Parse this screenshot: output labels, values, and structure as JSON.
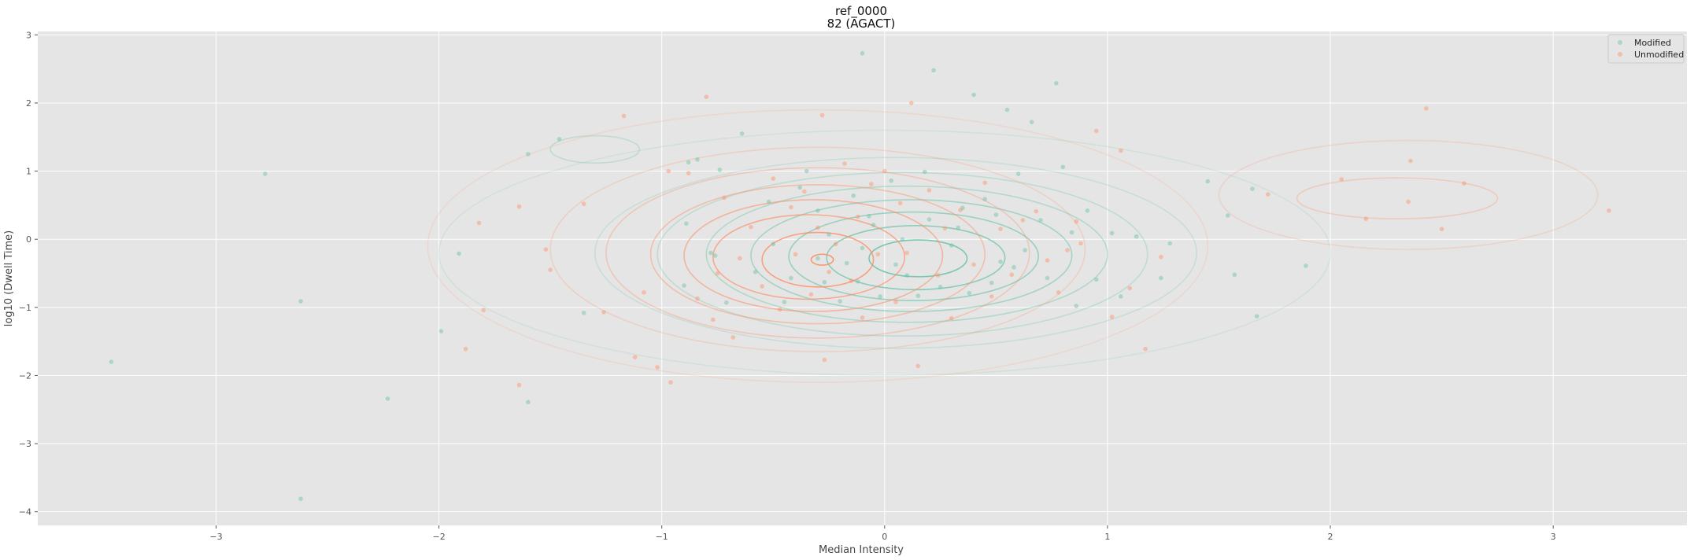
{
  "chart_data": {
    "type": "scatter",
    "title": "ref_0000",
    "subtitle": "82 (AGACT)",
    "xlabel": "Median Intensity",
    "ylabel": "log10 (Dwell Time)",
    "xlim": [
      -3.8,
      3.6
    ],
    "ylim": [
      -4.2,
      3.05
    ],
    "x_ticks": [
      -3,
      -2,
      -1,
      0,
      1,
      2,
      3
    ],
    "y_ticks": [
      -4,
      -3,
      -2,
      -1,
      0,
      1,
      2,
      3
    ],
    "grid": true,
    "legend_position": "top-right",
    "colors": {
      "background": "#e5e5e5",
      "grid": "#ffffff",
      "modified": "#66c2a5",
      "unmodified": "#fc8d62"
    },
    "series": [
      {
        "name": "Modified",
        "points": [
          [
            -3.47,
            -1.8
          ],
          [
            -2.78,
            0.96
          ],
          [
            -2.62,
            -0.91
          ],
          [
            -2.62,
            -3.81
          ],
          [
            -2.23,
            -2.34
          ],
          [
            -1.99,
            -1.35
          ],
          [
            -1.91,
            -0.21
          ],
          [
            -1.6,
            1.25
          ],
          [
            -1.6,
            -2.39
          ],
          [
            -1.46,
            1.47
          ],
          [
            -1.35,
            -1.08
          ],
          [
            -0.9,
            -0.68
          ],
          [
            -0.89,
            0.23
          ],
          [
            -0.88,
            1.13
          ],
          [
            -0.84,
            1.17
          ],
          [
            -0.78,
            -0.2
          ],
          [
            -0.76,
            -0.24
          ],
          [
            -0.74,
            1.02
          ],
          [
            -0.71,
            -0.93
          ],
          [
            -0.64,
            1.55
          ],
          [
            -0.58,
            -0.48
          ],
          [
            -0.52,
            0.55
          ],
          [
            -0.5,
            -0.07
          ],
          [
            -0.45,
            -0.92
          ],
          [
            -0.42,
            -0.57
          ],
          [
            -0.38,
            0.76
          ],
          [
            -0.35,
            1.0
          ],
          [
            -0.3,
            0.42
          ],
          [
            -0.3,
            -0.28
          ],
          [
            -0.27,
            -0.63
          ],
          [
            -0.25,
            0.07
          ],
          [
            -0.2,
            -0.91
          ],
          [
            -0.17,
            -0.35
          ],
          [
            -0.14,
            0.64
          ],
          [
            -0.12,
            -0.62
          ],
          [
            -0.1,
            -0.13
          ],
          [
            -0.1,
            2.73
          ],
          [
            -0.07,
            0.34
          ],
          [
            -0.05,
            0.21
          ],
          [
            -0.02,
            -0.84
          ],
          [
            0.03,
            0.86
          ],
          [
            0.05,
            -0.37
          ],
          [
            0.08,
            0.0
          ],
          [
            0.1,
            -0.53
          ],
          [
            0.15,
            -0.83
          ],
          [
            0.18,
            0.99
          ],
          [
            0.2,
            0.29
          ],
          [
            0.22,
            2.48
          ],
          [
            0.25,
            -0.7
          ],
          [
            0.3,
            -0.09
          ],
          [
            0.33,
            0.17
          ],
          [
            0.35,
            0.46
          ],
          [
            0.38,
            -0.79
          ],
          [
            0.4,
            2.12
          ],
          [
            0.45,
            0.59
          ],
          [
            0.48,
            -0.64
          ],
          [
            0.5,
            0.36
          ],
          [
            0.52,
            -0.33
          ],
          [
            0.55,
            1.9
          ],
          [
            0.58,
            -0.41
          ],
          [
            0.6,
            0.96
          ],
          [
            0.63,
            -0.16
          ],
          [
            0.66,
            1.72
          ],
          [
            0.7,
            0.28
          ],
          [
            0.73,
            -0.57
          ],
          [
            0.77,
            2.29
          ],
          [
            0.8,
            1.06
          ],
          [
            0.84,
            0.1
          ],
          [
            0.86,
            -0.98
          ],
          [
            0.91,
            0.42
          ],
          [
            0.95,
            -0.59
          ],
          [
            1.02,
            0.09
          ],
          [
            1.06,
            -0.84
          ],
          [
            1.13,
            0.04
          ],
          [
            1.24,
            -0.57
          ],
          [
            1.28,
            -0.06
          ],
          [
            1.45,
            0.85
          ],
          [
            1.54,
            0.35
          ],
          [
            1.57,
            -0.52
          ],
          [
            1.65,
            0.74
          ],
          [
            1.67,
            -1.13
          ],
          [
            1.89,
            -0.39
          ]
        ]
      },
      {
        "name": "Unmodified",
        "points": [
          [
            -1.88,
            -1.61
          ],
          [
            -1.82,
            0.24
          ],
          [
            -1.8,
            -1.04
          ],
          [
            -1.64,
            -2.14
          ],
          [
            -1.64,
            0.48
          ],
          [
            -1.52,
            -0.15
          ],
          [
            -1.5,
            -0.45
          ],
          [
            -1.35,
            0.52
          ],
          [
            -1.26,
            -1.07
          ],
          [
            -1.17,
            1.81
          ],
          [
            -1.12,
            -1.73
          ],
          [
            -1.08,
            -0.78
          ],
          [
            -1.02,
            -1.88
          ],
          [
            -0.97,
            1.0
          ],
          [
            -0.96,
            -2.1
          ],
          [
            -0.88,
            0.97
          ],
          [
            -0.84,
            -0.87
          ],
          [
            -0.8,
            2.09
          ],
          [
            -0.77,
            -1.18
          ],
          [
            -0.75,
            -0.5
          ],
          [
            -0.72,
            0.61
          ],
          [
            -0.68,
            -1.44
          ],
          [
            -0.65,
            -0.28
          ],
          [
            -0.6,
            0.18
          ],
          [
            -0.55,
            -0.69
          ],
          [
            -0.5,
            0.89
          ],
          [
            -0.47,
            -1.03
          ],
          [
            -0.42,
            0.47
          ],
          [
            -0.4,
            -0.22
          ],
          [
            -0.36,
            0.7
          ],
          [
            -0.33,
            -0.81
          ],
          [
            -0.3,
            0.17
          ],
          [
            -0.28,
            1.82
          ],
          [
            -0.25,
            -0.48
          ],
          [
            -0.27,
            -1.77
          ],
          [
            -0.22,
            -0.07
          ],
          [
            -0.18,
            1.11
          ],
          [
            -0.15,
            -0.61
          ],
          [
            -0.12,
            0.33
          ],
          [
            -0.1,
            -1.15
          ],
          [
            -0.06,
            0.81
          ],
          [
            -0.03,
            -0.22
          ],
          [
            0.0,
            1.0
          ],
          [
            0.05,
            -0.92
          ],
          [
            0.07,
            0.53
          ],
          [
            0.1,
            -0.2
          ],
          [
            0.12,
            2.0
          ],
          [
            0.15,
            -1.86
          ],
          [
            0.2,
            0.72
          ],
          [
            0.24,
            -0.53
          ],
          [
            0.27,
            0.16
          ],
          [
            0.3,
            -1.16
          ],
          [
            0.34,
            0.43
          ],
          [
            0.4,
            -0.37
          ],
          [
            0.45,
            0.83
          ],
          [
            0.48,
            -0.84
          ],
          [
            0.52,
            0.15
          ],
          [
            0.57,
            -0.52
          ],
          [
            0.62,
            0.28
          ],
          [
            0.68,
            0.41
          ],
          [
            0.73,
            -0.31
          ],
          [
            0.78,
            -0.78
          ],
          [
            0.82,
            -0.16
          ],
          [
            0.86,
            0.26
          ],
          [
            0.88,
            -0.06
          ],
          [
            0.95,
            1.59
          ],
          [
            1.02,
            -1.14
          ],
          [
            1.06,
            1.3
          ],
          [
            1.1,
            -0.72
          ],
          [
            1.17,
            -1.61
          ],
          [
            1.24,
            -0.26
          ],
          [
            1.72,
            0.66
          ],
          [
            2.05,
            0.88
          ],
          [
            2.16,
            0.3
          ],
          [
            2.35,
            0.55
          ],
          [
            2.36,
            1.15
          ],
          [
            2.43,
            1.92
          ],
          [
            2.5,
            0.15
          ],
          [
            2.6,
            0.82
          ],
          [
            3.25,
            0.42
          ]
        ]
      }
    ],
    "density_contours": [
      {
        "series": "Modified",
        "rings": [
          {
            "cx": 0.0,
            "cy": -0.2,
            "rx": 2.0,
            "ry": 1.8,
            "a": 0.14
          },
          {
            "cx": 0.05,
            "cy": -0.2,
            "rx": 1.35,
            "ry": 1.4,
            "a": 0.22
          },
          {
            "cx": 0.08,
            "cy": -0.22,
            "rx": 1.1,
            "ry": 1.2,
            "a": 0.3
          },
          {
            "cx": 0.1,
            "cy": -0.22,
            "rx": 0.9,
            "ry": 1.0,
            "a": 0.4
          },
          {
            "cx": 0.12,
            "cy": -0.24,
            "rx": 0.72,
            "ry": 0.82,
            "a": 0.5
          },
          {
            "cx": 0.13,
            "cy": -0.25,
            "rx": 0.56,
            "ry": 0.65,
            "a": 0.6
          },
          {
            "cx": 0.14,
            "cy": -0.27,
            "rx": 0.4,
            "ry": 0.47,
            "a": 0.72
          },
          {
            "cx": 0.15,
            "cy": -0.28,
            "rx": 0.22,
            "ry": 0.27,
            "a": 0.85
          },
          {
            "cx": -1.3,
            "cy": 1.32,
            "rx": 0.2,
            "ry": 0.2,
            "a": 0.3
          }
        ]
      },
      {
        "series": "Unmodified",
        "rings": [
          {
            "cx": -0.3,
            "cy": -0.1,
            "rx": 1.75,
            "ry": 2.0,
            "a": 0.16
          },
          {
            "cx": -0.3,
            "cy": -0.15,
            "rx": 1.2,
            "ry": 1.5,
            "a": 0.24
          },
          {
            "cx": -0.3,
            "cy": -0.2,
            "rx": 0.95,
            "ry": 1.25,
            "a": 0.33
          },
          {
            "cx": -0.3,
            "cy": -0.22,
            "rx": 0.75,
            "ry": 1.02,
            "a": 0.43
          },
          {
            "cx": -0.32,
            "cy": -0.24,
            "rx": 0.58,
            "ry": 0.82,
            "a": 0.55
          },
          {
            "cx": -0.34,
            "cy": -0.26,
            "rx": 0.43,
            "ry": 0.62,
            "a": 0.66
          },
          {
            "cx": -0.3,
            "cy": -0.3,
            "rx": 0.25,
            "ry": 0.4,
            "a": 0.8
          },
          {
            "cx": -0.28,
            "cy": -0.3,
            "rx": 0.05,
            "ry": 0.08,
            "a": 0.9
          },
          {
            "cx": 2.35,
            "cy": 0.65,
            "rx": 0.85,
            "ry": 0.8,
            "a": 0.2
          },
          {
            "cx": 2.3,
            "cy": 0.6,
            "rx": 0.45,
            "ry": 0.3,
            "a": 0.3
          }
        ]
      }
    ]
  }
}
